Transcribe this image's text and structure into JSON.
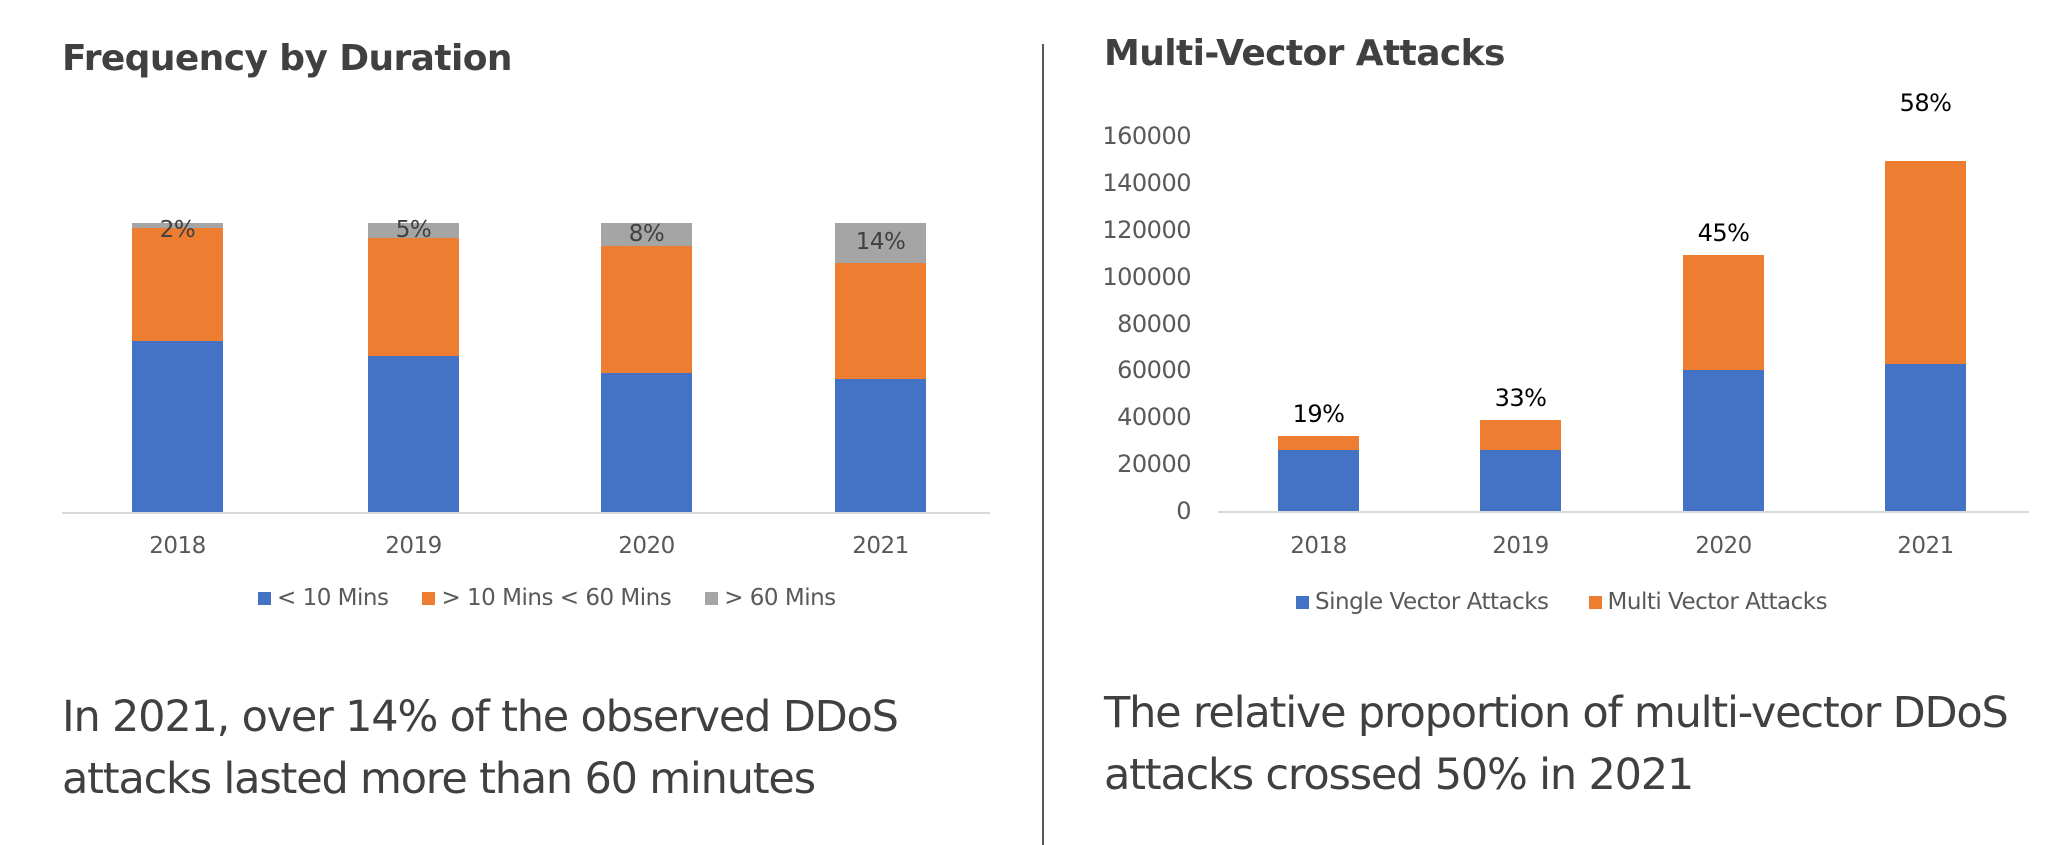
{
  "colors": {
    "blue": "#4472c4",
    "orange": "#ed7d31",
    "gray": "#a5a5a5",
    "text_dark": "#404040",
    "text_axis": "#595959"
  },
  "left": {
    "title": "Frequency by Duration",
    "categories": [
      "2018",
      "2019",
      "2020",
      "2021"
    ],
    "legend": [
      "< 10 Mins",
      "> 10 Mins < 60 Mins",
      "> 60 Mins"
    ],
    "gray_labels": [
      "2%",
      "5%",
      "8%",
      "14%"
    ],
    "caption_line1": "In 2021, over 14% of the observed DDoS",
    "caption_line2": "attacks lasted more than 60 minutes"
  },
  "right": {
    "title": "Multi-Vector Attacks",
    "categories": [
      "2018",
      "2019",
      "2020",
      "2021"
    ],
    "yticks": [
      "160000",
      "140000",
      "120000",
      "100000",
      "80000",
      "60000",
      "40000",
      "20000",
      "0"
    ],
    "legend": [
      "Single Vector Attacks",
      "Multi Vector Attacks"
    ],
    "top_labels": [
      "19%",
      "33%",
      "45%",
      "58%"
    ],
    "caption_line1": "The relative proportion of multi-vector DDoS",
    "caption_line2": "attacks crossed 50% in 2021"
  },
  "chart_data": [
    {
      "type": "bar",
      "stacked": true,
      "percent_stacked": true,
      "title": "Frequency by Duration",
      "categories": [
        "2018",
        "2019",
        "2020",
        "2021"
      ],
      "series": [
        {
          "name": "< 10 Mins",
          "values": [
            59,
            54,
            48,
            46
          ],
          "color": "#4472c4"
        },
        {
          "name": "> 10 Mins < 60 Mins",
          "values": [
            39,
            41,
            44,
            40
          ],
          "color": "#ed7d31"
        },
        {
          "name": "> 60 Mins",
          "values": [
            2,
            5,
            8,
            14
          ],
          "color": "#a5a5a5"
        }
      ],
      "data_labels": {
        "series": "> 60 Mins",
        "values": [
          "2%",
          "5%",
          "8%",
          "14%"
        ]
      },
      "xlabel": "",
      "ylabel": "",
      "ylim": [
        0,
        100
      ],
      "yaxis_visible": false,
      "grid": false,
      "legend_position": "bottom"
    },
    {
      "type": "bar",
      "stacked": true,
      "title": "Multi-Vector Attacks",
      "categories": [
        "2018",
        "2019",
        "2020",
        "2021"
      ],
      "series": [
        {
          "name": "Single Vector Attacks",
          "values": [
            26000,
            25900,
            60200,
            62700
          ],
          "color": "#4472c4"
        },
        {
          "name": "Multi Vector Attacks",
          "values": [
            6100,
            12800,
            49000,
            86600
          ],
          "color": "#ed7d31"
        }
      ],
      "data_labels": {
        "position": "above_stack",
        "values": [
          "19%",
          "33%",
          "45%",
          "58%"
        ]
      },
      "xlabel": "",
      "ylabel": "",
      "ylim": [
        0,
        160000
      ],
      "yticks": [
        0,
        20000,
        40000,
        60000,
        80000,
        100000,
        120000,
        140000,
        160000
      ],
      "grid": false,
      "legend_position": "bottom"
    }
  ]
}
